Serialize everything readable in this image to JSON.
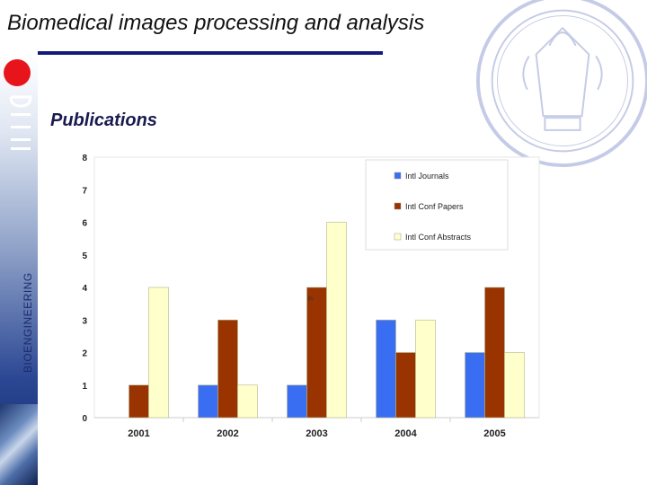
{
  "slide": {
    "title": "Biomedical images processing and analysis",
    "subtitle": "Publications",
    "side_label": "BIOENGINEERING"
  },
  "colors": {
    "accent_red": "#e8141c",
    "title_rule": "#141a7a",
    "seal": "#c5cbe6"
  },
  "icons": {
    "logo": "university-logo-icon",
    "seal": "university-seal-icon"
  },
  "chart_data": {
    "type": "bar",
    "categories": [
      "2001",
      "2002",
      "2003",
      "2004",
      "2005"
    ],
    "series": [
      {
        "name": "Intl Journals",
        "color": "#3a6ef2",
        "values": [
          0,
          1,
          1,
          3,
          2
        ]
      },
      {
        "name": "Intl Conf Papers",
        "color": "#993300",
        "values": [
          1,
          3,
          4,
          2,
          4
        ]
      },
      {
        "name": "Intl Conf Abstracts",
        "color": "#ffffcc",
        "values": [
          4,
          1,
          6,
          3,
          2
        ]
      }
    ],
    "yticks": [
      "0",
      "1",
      "2",
      "3",
      "4",
      "5",
      "6",
      "7",
      "8"
    ],
    "ylim": [
      0,
      8
    ],
    "title": "",
    "xlabel": "",
    "ylabel": "",
    "annotation": "in",
    "annotation_at": {
      "category": "2003",
      "value": 3.6
    },
    "legend": "top-right",
    "grid": false
  }
}
